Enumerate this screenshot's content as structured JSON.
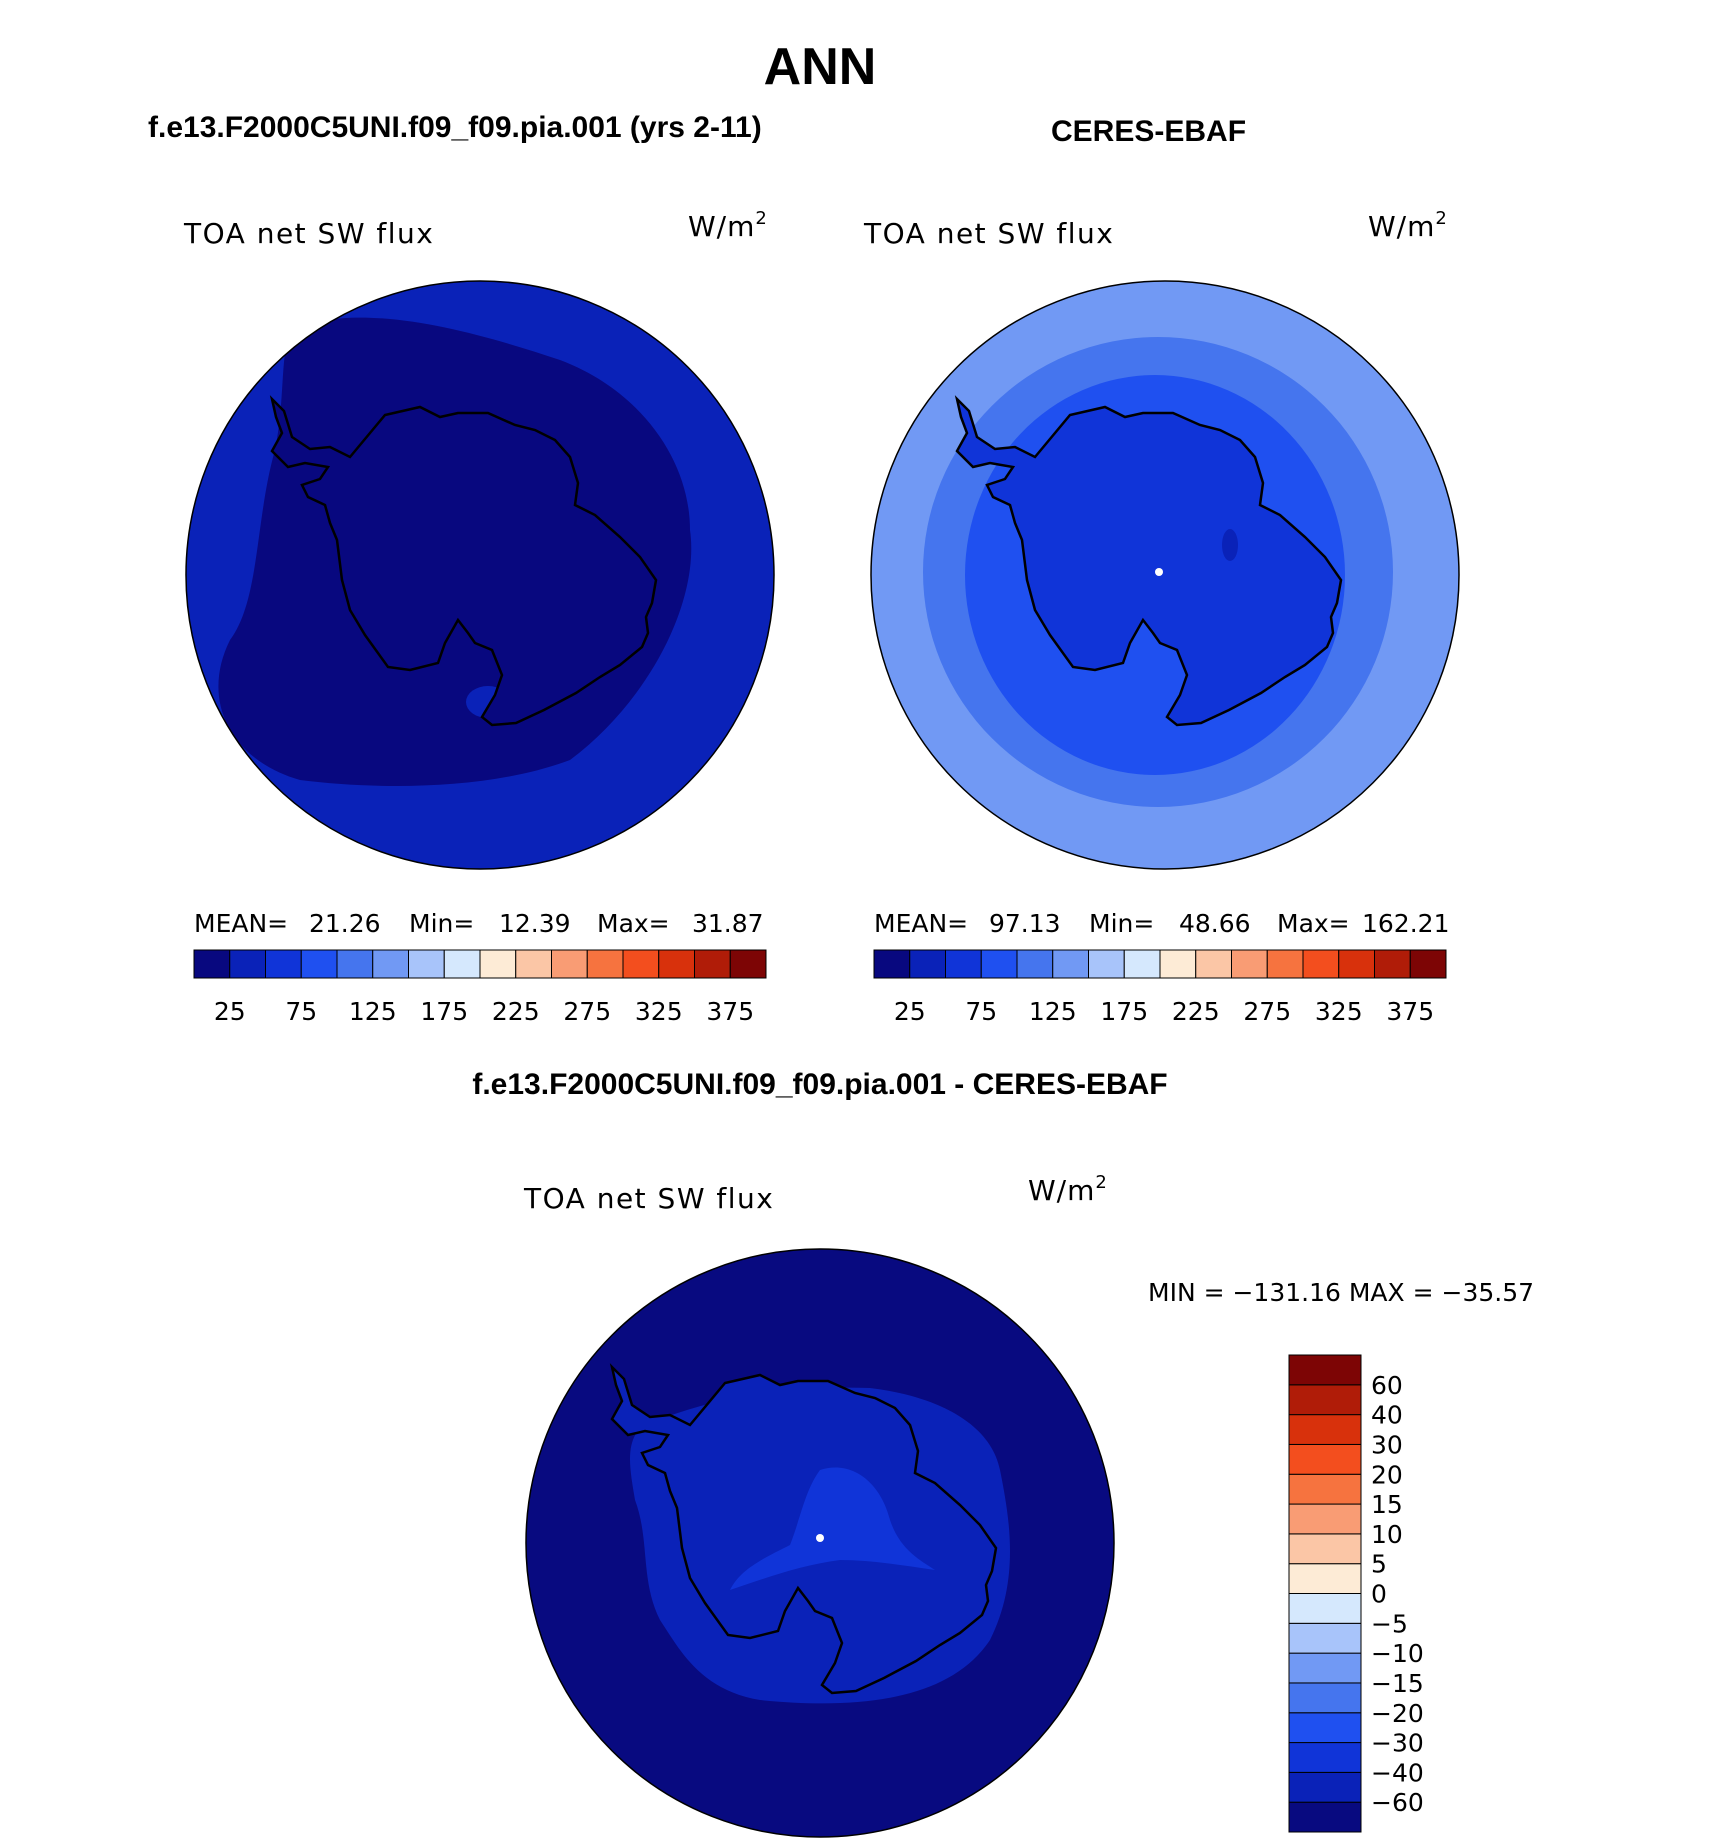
{
  "page": {
    "title": "ANN",
    "diff_title": "f.e13.F2000C5UNI.f09_f09.pia.001 - CERES-EBAF"
  },
  "chart_data": [
    {
      "type": "heatmap",
      "projection": "south-polar-stereographic",
      "title": "f.e13.F2000C5UNI.f09_f09.pia.001 (yrs 2-11)",
      "variable": "TOA net SW flux",
      "units": "W/m2",
      "stats": {
        "mean_label": "MEAN=",
        "mean": "21.26",
        "min_label": "Min=",
        "min": "12.39",
        "max_label": "Max=",
        "max": "31.87"
      },
      "colorbar": {
        "ticks": [
          "25",
          "75",
          "125",
          "175",
          "225",
          "275",
          "325",
          "375"
        ],
        "levels": [
          25,
          50,
          75,
          100,
          125,
          150,
          175,
          200,
          225,
          250,
          275,
          300,
          325,
          350,
          375
        ]
      },
      "region_values": {
        "antarctica": 15,
        "near_ocean": 20,
        "outer_ocean": 30
      }
    },
    {
      "type": "heatmap",
      "projection": "south-polar-stereographic",
      "title": "CERES-EBAF",
      "variable": "TOA net SW flux",
      "units": "W/m2",
      "stats": {
        "mean_label": "MEAN=",
        "mean": "97.13",
        "min_label": "Min=",
        "min": "48.66",
        "max_label": "Max=",
        "max": "162.21"
      },
      "colorbar": {
        "ticks": [
          "25",
          "75",
          "125",
          "175",
          "225",
          "275",
          "325",
          "375"
        ],
        "levels": [
          25,
          50,
          75,
          100,
          125,
          150,
          175,
          200,
          225,
          250,
          275,
          300,
          325,
          350,
          375
        ]
      },
      "region_values": {
        "antarctica": 60,
        "inner_ocean": 90,
        "middle_ocean": 115,
        "outer_ocean": 155
      }
    },
    {
      "type": "heatmap",
      "projection": "south-polar-stereographic",
      "title": "",
      "variable": "TOA net SW flux",
      "units": "W/m2",
      "range_text": "MIN = −131.16 MAX = −35.57",
      "colorbar": {
        "labels_top_to_bottom": [
          "60",
          "40",
          "30",
          "20",
          "15",
          "10",
          "5",
          "0",
          "−5",
          "−10",
          "−15",
          "−20",
          "−30",
          "−40",
          "−60"
        ]
      },
      "region_values": {
        "ocean": -90,
        "antarctica": -45,
        "interior": -35
      }
    }
  ],
  "colors": {
    "abs_palette": [
      "#08087f",
      "#0a22b8",
      "#1034d8",
      "#1f50f0",
      "#4575ee",
      "#7199f4",
      "#a8c4fa",
      "#d5e8fd",
      "#fdebd6",
      "#fbc6a6",
      "#f99c74",
      "#f6733f",
      "#f34e1e",
      "#d8310c",
      "#b01c08",
      "#7d0505"
    ],
    "diff_palette_bottom_to_top": [
      "#080a80",
      "#0a22b8",
      "#1034d8",
      "#1f50f0",
      "#4575ee",
      "#7199f4",
      "#a8c4fa",
      "#d5e8fd",
      "#fdebd6",
      "#fbc6a6",
      "#f99c74",
      "#f6733f",
      "#f34e1e",
      "#d8310c",
      "#b01c08",
      "#7d0505"
    ]
  }
}
